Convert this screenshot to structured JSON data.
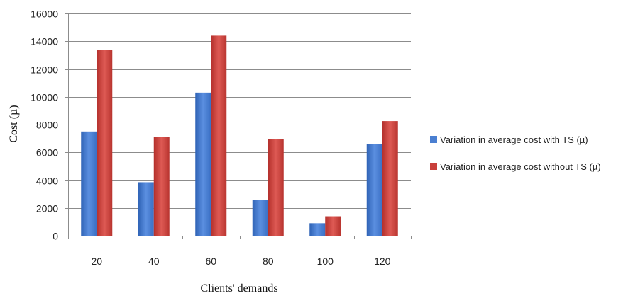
{
  "chart_data": {
    "type": "bar",
    "title": "",
    "xlabel": "Clients' demands",
    "ylabel": "Cost (µ)",
    "categories": [
      "20",
      "40",
      "60",
      "80",
      "100",
      "120"
    ],
    "ylim": [
      0,
      16000
    ],
    "yticks": [
      0,
      2000,
      4000,
      6000,
      8000,
      10000,
      12000,
      14000,
      16000
    ],
    "grid": true,
    "legend_position": "right",
    "series": [
      {
        "name": "Variation in average cost with TS (µ)",
        "color": "#4a7fd1",
        "values": [
          7500,
          3850,
          10300,
          2550,
          900,
          6600
        ]
      },
      {
        "name": "Variation in average cost without TS (µ)",
        "color": "#c9403b",
        "values": [
          13400,
          7100,
          14400,
          6950,
          1400,
          8250
        ]
      }
    ]
  }
}
